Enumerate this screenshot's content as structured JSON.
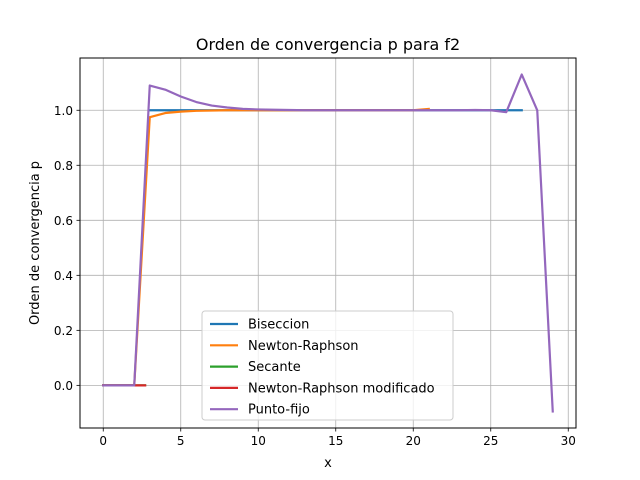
{
  "chart_data": {
    "type": "line",
    "title": "Orden de convergencia p para f2",
    "xlabel": "x",
    "ylabel": "Orden de convergencia p",
    "xlim": [
      -1.5,
      30.5
    ],
    "ylim": [
      -0.155,
      1.19
    ],
    "xticks": [
      0,
      5,
      10,
      15,
      20,
      25,
      30
    ],
    "yticks": [
      0.0,
      0.2,
      0.4,
      0.6,
      0.8,
      1.0
    ],
    "ytick_labels": [
      "0.0",
      "0.2",
      "0.4",
      "0.6",
      "0.8",
      "1.0"
    ],
    "grid": true,
    "legend_position": "lower center",
    "series": [
      {
        "name": "Biseccion",
        "color": "#1f77b4",
        "x": [
          3,
          4,
          5,
          6,
          7,
          8,
          9,
          10,
          11,
          12,
          13,
          14,
          15,
          16,
          17,
          18,
          19,
          20,
          21,
          22,
          23,
          24,
          25,
          26,
          27
        ],
        "y": [
          1.0,
          1.0,
          1.0,
          1.0,
          1.0,
          1.0,
          1.0,
          1.0,
          1.0,
          1.0,
          1.0,
          1.0,
          1.0,
          1.0,
          1.0,
          1.0,
          1.0,
          1.0,
          1.0,
          1.0,
          1.0,
          1.0,
          1.0,
          1.0,
          1.0
        ]
      },
      {
        "name": "Newton-Raphson",
        "color": "#ff7f0e",
        "x": [
          0,
          1,
          2,
          3,
          4,
          5,
          6,
          7,
          8,
          9,
          10,
          11,
          12,
          13,
          14,
          15,
          16,
          17,
          18,
          19,
          20,
          21
        ],
        "y": [
          0,
          0,
          0,
          0.975,
          0.99,
          0.995,
          0.998,
          0.999,
          1.0,
          1.0,
          1.0,
          1.0,
          1.0,
          1.0,
          1.0,
          1.0,
          1.0,
          1.0,
          1.0,
          1.0,
          1.0,
          1.005
        ]
      },
      {
        "name": "Secante",
        "color": "#2ca02c",
        "x": [
          0,
          1,
          2,
          2.7
        ],
        "y": [
          0,
          0,
          0,
          0
        ]
      },
      {
        "name": "Newton-Raphson modificado",
        "color": "#d62728",
        "x": [
          0,
          1,
          2,
          2.7
        ],
        "y": [
          0,
          0,
          0,
          0
        ]
      },
      {
        "name": "Punto-fijo",
        "color": "#9467bd",
        "x": [
          0,
          1,
          2,
          3,
          4,
          5,
          6,
          7,
          8,
          9,
          10,
          11,
          12,
          13,
          14,
          15,
          16,
          17,
          18,
          19,
          20,
          21,
          22,
          23,
          24,
          25,
          26,
          27,
          28,
          29
        ],
        "y": [
          0,
          0,
          0,
          1.09,
          1.075,
          1.05,
          1.03,
          1.017,
          1.01,
          1.005,
          1.003,
          1.002,
          1.001,
          1.0,
          1.0,
          1.0,
          1.0,
          1.0,
          1.0,
          1.0,
          1.0,
          1.0,
          1.0,
          1.0,
          1.001,
          1.0,
          0.993,
          1.13,
          1.0,
          -0.095
        ]
      }
    ]
  }
}
